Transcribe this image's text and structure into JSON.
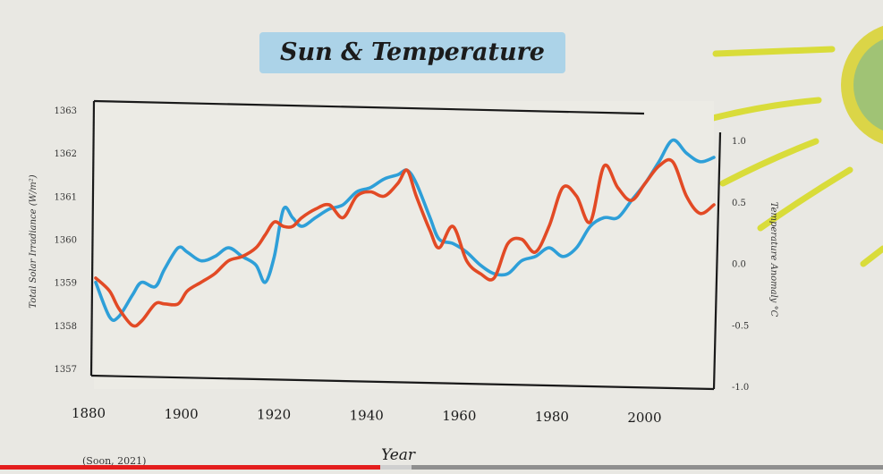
{
  "chart_data": {
    "type": "line",
    "title": "Sun & Temperature",
    "xlabel": "Year",
    "ylabel_left": "Total Solar Irradiance (W/m²)",
    "ylabel_right": "Temperature Anomaly °C",
    "xlim": [
      1880,
      2015
    ],
    "ylim_left": [
      1357,
      1363
    ],
    "ylim_right": [
      -1.0,
      1.0
    ],
    "x_ticks": [
      1880,
      1900,
      1920,
      1940,
      1960,
      1980,
      2000
    ],
    "y_ticks_left": [
      1357,
      1358,
      1359,
      1360,
      1361,
      1362,
      1363
    ],
    "y_ticks_right": [
      "-1.0",
      "-0.5",
      "0.0",
      "0.5",
      "1.0"
    ],
    "grid": false,
    "source_note": "(Soon, 2021)",
    "series": [
      {
        "axis": "left",
        "color": "#2e9fd8",
        "x": [
          1880,
          1883,
          1885,
          1888,
          1890,
          1893,
          1895,
          1898,
          1900,
          1903,
          1906,
          1909,
          1912,
          1915,
          1917,
          1919,
          1921,
          1923,
          1925,
          1928,
          1931,
          1934,
          1937,
          1940,
          1943,
          1946,
          1948,
          1950,
          1953,
          1955,
          1958,
          1961,
          1964,
          1967,
          1970,
          1973,
          1976,
          1979,
          1982,
          1985,
          1988,
          1991,
          1994,
          1997,
          2000,
          2003,
          2006,
          2009,
          2012,
          2015
        ],
        "values": [
          1359.0,
          1358.2,
          1358.2,
          1358.7,
          1359.0,
          1358.9,
          1359.3,
          1359.8,
          1359.7,
          1359.5,
          1359.6,
          1359.8,
          1359.6,
          1359.4,
          1359.0,
          1359.6,
          1360.7,
          1360.5,
          1360.3,
          1360.5,
          1360.7,
          1360.8,
          1361.1,
          1361.2,
          1361.4,
          1361.5,
          1361.6,
          1361.3,
          1360.5,
          1360.0,
          1359.9,
          1359.7,
          1359.4,
          1359.2,
          1359.2,
          1359.5,
          1359.6,
          1359.8,
          1359.6,
          1359.8,
          1360.3,
          1360.5,
          1360.5,
          1360.9,
          1361.3,
          1361.8,
          1362.3,
          1362.0,
          1361.8,
          1361.9
        ]
      },
      {
        "axis": "left",
        "color": "#e24a25",
        "x": [
          1880,
          1883,
          1885,
          1888,
          1890,
          1893,
          1895,
          1898,
          1900,
          1903,
          1906,
          1909,
          1912,
          1915,
          1917,
          1919,
          1921,
          1923,
          1925,
          1928,
          1931,
          1934,
          1937,
          1940,
          1943,
          1946,
          1948,
          1950,
          1953,
          1955,
          1958,
          1961,
          1964,
          1967,
          1970,
          1973,
          1976,
          1979,
          1982,
          1985,
          1988,
          1991,
          1994,
          1997,
          2000,
          2003,
          2006,
          2009,
          2012,
          2015
        ],
        "values": [
          1359.1,
          1358.8,
          1358.4,
          1358.0,
          1358.1,
          1358.5,
          1358.5,
          1358.5,
          1358.8,
          1359.0,
          1359.2,
          1359.5,
          1359.6,
          1359.8,
          1360.1,
          1360.4,
          1360.3,
          1360.3,
          1360.5,
          1360.7,
          1360.8,
          1360.5,
          1361.0,
          1361.1,
          1361.0,
          1361.3,
          1361.6,
          1361.0,
          1360.2,
          1359.8,
          1360.3,
          1359.5,
          1359.2,
          1359.1,
          1359.9,
          1360.0,
          1359.7,
          1360.3,
          1361.2,
          1361.0,
          1360.4,
          1361.7,
          1361.2,
          1360.9,
          1361.3,
          1361.7,
          1361.8,
          1361.0,
          1360.6,
          1360.8
        ]
      }
    ]
  }
}
